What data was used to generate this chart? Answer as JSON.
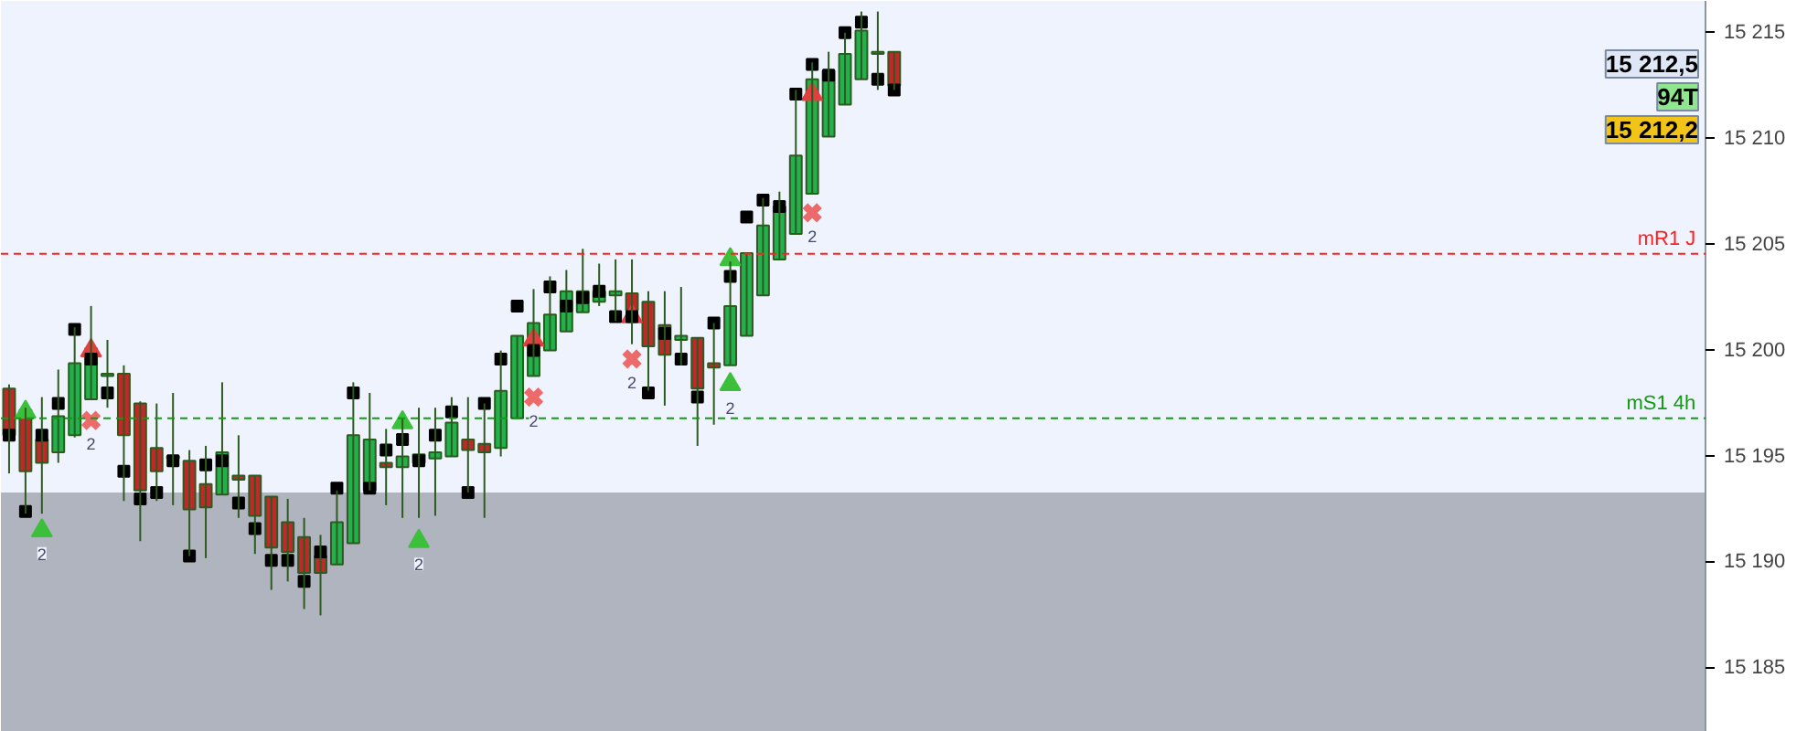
{
  "chart_data": {
    "type": "candlestick",
    "categories": [
      null,
      null,
      null,
      null,
      null,
      null,
      null,
      null,
      null,
      null,
      null,
      null,
      null,
      null,
      null,
      null,
      null,
      null,
      null,
      null,
      null,
      null,
      null,
      null,
      null,
      null,
      null,
      null,
      null,
      null,
      null,
      null,
      null,
      null,
      null,
      null,
      null,
      null,
      null,
      null,
      null,
      null,
      null,
      null,
      null,
      null,
      null,
      null,
      null,
      null,
      null,
      null,
      null,
      null,
      null,
      null,
      null,
      null,
      null,
      null,
      null,
      null,
      null,
      null,
      null,
      null,
      null,
      null,
      null,
      null,
      null,
      null,
      null,
      null,
      null,
      null,
      null,
      null,
      null,
      null,
      null,
      null,
      null,
      null,
      null,
      null,
      null,
      null,
      null,
      null,
      null,
      null,
      null,
      null,
      null,
      null,
      null,
      null,
      null,
      null,
      null,
      null,
      null,
      null
    ],
    "ohlc": [
      [
        15198.2,
        15198.4,
        15194.2,
        15196.0
      ],
      [
        15197.2,
        15197.3,
        15192.3,
        15194.3
      ],
      [
        15195.8,
        15197.8,
        15192.3,
        15194.7
      ],
      [
        15195.2,
        15199.1,
        15194.7,
        15196.9
      ],
      [
        15196.0,
        15201.1,
        15195.9,
        15199.4
      ],
      [
        15197.7,
        15202.1,
        15197.7,
        15200.1
      ],
      [
        15198.8,
        15200.5,
        15197.3,
        15198.9
      ],
      [
        15198.9,
        15199.3,
        15192.9,
        15196.0
      ],
      [
        15197.5,
        15197.6,
        15191.0,
        15193.4
      ],
      [
        15195.4,
        15197.5,
        15192.9,
        15194.3
      ],
      [
        15194.9,
        15198.0,
        15192.7,
        15195.0
      ],
      [
        15194.8,
        15195.3,
        15190.3,
        15192.5
      ],
      [
        15193.7,
        15195.5,
        15190.2,
        15192.6
      ],
      [
        15193.2,
        15198.5,
        15193.2,
        15195.2
      ],
      [
        15194.1,
        15196.0,
        15192.1,
        15193.9
      ],
      [
        15194.1,
        15194.1,
        15190.4,
        15192.2
      ],
      [
        15193.1,
        15193.1,
        15188.7,
        15190.7
      ],
      [
        15191.9,
        15193.0,
        15189.1,
        15190.5
      ],
      [
        15191.2,
        15192.1,
        15187.8,
        15189.5
      ],
      [
        15190.3,
        15191.3,
        15187.5,
        15189.5
      ],
      [
        15189.9,
        15193.4,
        15189.9,
        15191.9
      ],
      [
        15190.9,
        15198.5,
        15190.9,
        15196.0
      ],
      [
        15193.4,
        15198.0,
        15193.4,
        15195.8
      ],
      [
        15194.7,
        15196.3,
        15192.7,
        15194.5
      ],
      [
        15194.5,
        15196.8,
        15192.1,
        15195.0
      ],
      [
        15194.7,
        15197.3,
        15192.1,
        15195.1
      ],
      [
        15194.9,
        15197.3,
        15192.2,
        15195.2
      ],
      [
        15195.0,
        15197.8,
        15195.0,
        15196.6
      ],
      [
        15195.8,
        15197.8,
        15193.3,
        15195.3
      ],
      [
        15195.6,
        15197.5,
        15192.1,
        15195.2
      ],
      [
        15195.4,
        15200.0,
        15195.0,
        15198.1
      ],
      [
        15196.8,
        15200.7,
        15196.8,
        15200.7
      ],
      [
        15198.8,
        15202.9,
        15198.8,
        15201.3
      ],
      [
        15200.0,
        15203.5,
        15200.0,
        15201.7
      ],
      [
        15200.9,
        15203.8,
        15200.9,
        15202.8
      ],
      [
        15201.8,
        15204.8,
        15201.8,
        15202.8
      ],
      [
        15202.3,
        15204.1,
        15202.1,
        15202.8
      ],
      [
        15202.6,
        15204.3,
        15201.4,
        15202.8
      ],
      [
        15202.7,
        15204.3,
        15200.3,
        15201.9
      ],
      [
        15202.3,
        15202.8,
        15198.1,
        15200.2
      ],
      [
        15201.2,
        15202.8,
        15197.4,
        15199.8
      ],
      [
        15200.5,
        15203.0,
        15199.3,
        15200.7
      ],
      [
        15200.6,
        15200.6,
        15195.5,
        15198.2
      ],
      [
        15199.4,
        15201.3,
        15196.5,
        15199.2
      ],
      [
        15199.3,
        15204.2,
        15199.3,
        15202.1
      ],
      [
        15200.7,
        15204.6,
        15200.7,
        15204.6
      ],
      [
        15202.6,
        15207.2,
        15202.6,
        15205.9
      ],
      [
        15204.3,
        15207.5,
        15204.3,
        15206.8
      ],
      [
        15205.5,
        15212.3,
        15205.5,
        15209.2
      ],
      [
        15207.4,
        15213.6,
        15207.4,
        15212.8
      ],
      [
        15210.1,
        15214.1,
        15210.1,
        15213.2
      ],
      [
        15211.6,
        15215.0,
        15211.6,
        15214.0
      ],
      [
        15212.8,
        15216.0,
        15212.8,
        15215.1
      ],
      [
        15214.0,
        15216.0,
        15212.3,
        15214.1
      ],
      [
        15214.1,
        15214.1,
        15212.3,
        15212.5
      ],
      null,
      null,
      null,
      null,
      null,
      null,
      null,
      null,
      null,
      null,
      null,
      null,
      null,
      null,
      null,
      null,
      null,
      null,
      null,
      null,
      null,
      null,
      null,
      null,
      null,
      null,
      null,
      null,
      null,
      null,
      null,
      null,
      null,
      null,
      null,
      null,
      null,
      null,
      null,
      null,
      null,
      null,
      null,
      null,
      null,
      null,
      null,
      null,
      null
    ],
    "colors": [
      "#c0282a",
      "#c0282a",
      "#c0282a",
      "#22b14c",
      "#22b14c",
      "#22b14c",
      "#22b14c",
      "#c0282a",
      "#c0282a",
      "#c0282a",
      "#22b14c",
      "#c0282a",
      "#c0282a",
      "#22b14c",
      "#c0282a",
      "#c0282a",
      "#c0282a",
      "#c0282a",
      "#c0282a",
      "#c0282a",
      "#22b14c",
      "#22b14c",
      "#22b14c",
      "#c0282a",
      "#22b14c",
      "#22b14c",
      "#22b14c",
      "#22b14c",
      "#c0282a",
      "#c0282a",
      "#22b14c",
      "#22b14c",
      "#22b14c",
      "#22b14c",
      "#22b14c",
      "#22b14c",
      "#22b14c",
      "#22b14c",
      "#c0282a",
      "#c0282a",
      "#c0282a",
      "#22b14c",
      "#c0282a",
      "#c0282a",
      "#22b14c",
      "#22b14c",
      "#22b14c",
      "#22b14c",
      "#22b14c",
      "#22b14c",
      "#22b14c",
      "#22b14c",
      "#22b14c",
      "#22b14c",
      "#c0282a",
      null,
      null,
      null,
      null,
      null,
      null,
      null,
      null,
      null,
      null,
      null,
      null,
      null,
      null,
      null,
      null,
      null,
      null,
      null,
      null,
      null,
      null,
      null,
      null,
      null,
      null,
      null,
      null,
      null,
      null,
      null,
      null,
      null,
      null,
      null,
      null,
      null,
      null,
      null,
      null,
      null,
      null,
      null,
      null,
      null,
      null,
      null,
      null,
      null
    ],
    "series": [
      {
        "type": "scatter",
        "marker": "square",
        "color": "#000000",
        "values": [
          15196.0,
          15192.4,
          15196.0,
          15197.5,
          15201.0,
          15199.6,
          15198.0,
          15194.3,
          15193.0,
          15193.3,
          15194.8,
          15190.3,
          15194.6,
          15194.8,
          15192.8,
          15191.6,
          15190.1,
          15190.1,
          15189.1,
          15190.5,
          15193.5,
          15198.0,
          15193.5,
          15195.3,
          15195.8,
          15194.8,
          15196.0,
          15197.1,
          15193.3,
          15197.5,
          15199.6,
          15202.1,
          15200.0,
          15203.0,
          15202.1,
          15202.5,
          15202.8,
          15201.6,
          15201.6,
          15198.0,
          15200.8,
          15199.6,
          15197.8,
          15201.3,
          15203.5,
          15206.3,
          15207.1,
          15206.8,
          15212.1,
          15213.5,
          15213.0,
          15215.0,
          15215.5,
          15212.8,
          15212.3,
          null,
          null,
          null,
          null,
          null,
          null,
          null,
          null,
          null,
          null,
          null,
          null,
          null,
          null,
          null,
          null,
          null,
          null,
          null,
          null,
          null,
          null,
          null,
          null,
          null,
          null,
          null,
          null,
          null,
          null,
          null,
          null,
          null,
          null,
          null,
          null,
          null,
          null,
          null,
          null,
          null,
          null,
          null,
          null,
          null,
          null,
          null,
          null,
          null
        ]
      },
      {
        "type": "scatter",
        "marker": "triangle",
        "color": "#3cc03c",
        "name": "2",
        "values": [
          null,
          null,
          15191.5,
          null,
          null,
          null,
          null,
          null,
          null,
          null,
          null,
          null,
          null,
          null,
          null,
          null,
          null,
          null,
          null,
          null,
          null,
          null,
          null,
          null,
          null,
          15191.0,
          null,
          null,
          null,
          null,
          null,
          null,
          null,
          null,
          null,
          null,
          null,
          null,
          null,
          null,
          null,
          null,
          null,
          null,
          15198.4,
          null,
          null,
          null,
          null,
          null,
          null,
          null,
          null,
          null,
          null,
          null,
          null,
          null,
          null,
          null,
          null,
          null,
          null,
          null,
          null,
          null,
          null,
          null,
          null,
          null,
          null,
          null,
          null,
          null,
          null,
          null,
          null,
          null,
          null,
          null,
          null,
          null,
          null,
          null,
          null,
          null,
          null,
          null,
          null,
          null,
          null,
          null,
          null,
          null,
          null,
          null,
          null,
          null,
          null,
          null,
          null,
          null,
          null,
          null
        ]
      },
      {
        "type": "scatter",
        "marker": "cross",
        "color": "#ec6a6a",
        "name": "2",
        "values": [
          null,
          null,
          null,
          null,
          null,
          15196.7,
          null,
          null,
          null,
          null,
          null,
          null,
          null,
          null,
          null,
          null,
          null,
          null,
          null,
          null,
          null,
          null,
          null,
          null,
          null,
          null,
          null,
          null,
          null,
          null,
          null,
          null,
          15197.8,
          null,
          null,
          null,
          null,
          null,
          15199.6,
          null,
          null,
          null,
          null,
          null,
          null,
          null,
          null,
          null,
          null,
          15206.5,
          null,
          null,
          null,
          null,
          null,
          null,
          null,
          null,
          null,
          null,
          null,
          null,
          null,
          null,
          null,
          null,
          null,
          null,
          null,
          null,
          null,
          null,
          null,
          null,
          null,
          null,
          null,
          null,
          null,
          null,
          null,
          null,
          null,
          null,
          null,
          null,
          null,
          null,
          null,
          null,
          null,
          null,
          null,
          null,
          null,
          null,
          null,
          null,
          null,
          null,
          null,
          null,
          null,
          null
        ]
      },
      {
        "type": "scatter",
        "marker": "triangle",
        "color": "#3cc03c",
        "values": [
          null,
          15197.1,
          null,
          null,
          null,
          null,
          null,
          null,
          null,
          null,
          null,
          null,
          null,
          null,
          null,
          null,
          null,
          null,
          null,
          null,
          null,
          null,
          null,
          null,
          15196.6,
          null,
          null,
          null,
          null,
          null,
          null,
          null,
          null,
          null,
          null,
          null,
          null,
          null,
          null,
          null,
          null,
          null,
          null,
          null,
          15204.3,
          null,
          null,
          null,
          null,
          null,
          null,
          null,
          null,
          null,
          null,
          null,
          null,
          null,
          null,
          null,
          null,
          null,
          null,
          null,
          null,
          null,
          null,
          null,
          null,
          null,
          null,
          null,
          null,
          null,
          null,
          null,
          null,
          null,
          null,
          null,
          null,
          null,
          null,
          null,
          null,
          null,
          null,
          null,
          null,
          null,
          null,
          null,
          null,
          null,
          null,
          null,
          null,
          null,
          null,
          null,
          null,
          null,
          null,
          null
        ]
      },
      {
        "type": "scatter",
        "marker": "triangle",
        "color": "#e04040",
        "values": [
          null,
          null,
          null,
          null,
          null,
          15200.0,
          null,
          null,
          null,
          null,
          null,
          null,
          null,
          null,
          null,
          null,
          null,
          null,
          null,
          null,
          null,
          null,
          null,
          null,
          null,
          null,
          null,
          null,
          null,
          null,
          null,
          null,
          15200.5,
          null,
          null,
          null,
          null,
          null,
          15201.6,
          null,
          null,
          null,
          null,
          null,
          null,
          null,
          null,
          null,
          null,
          15212.1,
          null,
          null,
          null,
          null,
          null,
          null,
          null,
          null,
          null,
          null,
          null,
          null,
          null,
          null,
          null,
          null,
          null,
          null,
          null,
          null,
          null,
          null,
          null,
          null,
          null,
          null,
          null,
          null,
          null,
          null,
          null,
          null,
          null,
          null,
          null,
          null,
          null,
          null,
          null,
          null,
          null,
          null,
          null,
          null,
          null,
          null,
          null,
          null,
          null,
          null,
          null,
          null,
          null,
          null
        ]
      }
    ],
    "ylim": [
      15182.0,
      15216.5
    ],
    "yticks": [
      {
        "value": 15185,
        "label": "15 185"
      },
      {
        "value": 15190,
        "label": "15 190"
      },
      {
        "value": 15195,
        "label": "15 195"
      },
      {
        "value": 15200,
        "label": "15 200"
      },
      {
        "value": 15205,
        "label": "15 205"
      },
      {
        "value": 15210,
        "label": "15 210"
      },
      {
        "value": 15215,
        "label": "15 215"
      }
    ],
    "tick_labels": "y",
    "ref_lines": [
      {
        "axis": "y",
        "value": 15204.57,
        "label": "mR1 J",
        "color": "#ff2020",
        "line_style": "dashed"
      },
      {
        "axis": "y",
        "value": 15196.8,
        "label": "mS1 4h",
        "color": "#139a13",
        "line_style": "dashed"
      }
    ],
    "bands": [
      {
        "axis": "y",
        "from": 15182.0,
        "to": 15193.3,
        "color": "#b0b4bf"
      }
    ],
    "annotations": [
      "15 212,5",
      "94T",
      "15 212,2"
    ]
  }
}
